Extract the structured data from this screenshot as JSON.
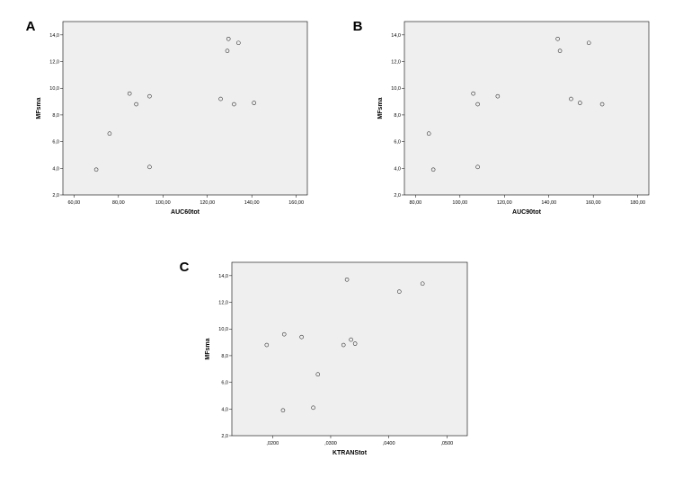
{
  "chart_data": [
    {
      "type": "scatter",
      "panel": "A",
      "xlabel": "AUC60tot",
      "ylabel": "MFsma",
      "xlim": [
        55,
        165
      ],
      "ylim": [
        2,
        15
      ],
      "xticks": [
        "60,00",
        "80,00",
        "100,00",
        "120,00",
        "140,00",
        "160,00"
      ],
      "yticks": [
        "2,0",
        "4,0",
        "6,0",
        "8,0",
        "10,0",
        "12,0",
        "14,0"
      ],
      "grid": false,
      "points": [
        {
          "x": 70,
          "y": 3.9
        },
        {
          "x": 76,
          "y": 6.6
        },
        {
          "x": 85,
          "y": 9.6
        },
        {
          "x": 88,
          "y": 8.8
        },
        {
          "x": 94,
          "y": 9.4
        },
        {
          "x": 94,
          "y": 4.1
        },
        {
          "x": 126,
          "y": 9.2
        },
        {
          "x": 129,
          "y": 12.8
        },
        {
          "x": 129.5,
          "y": 13.7
        },
        {
          "x": 132,
          "y": 8.8
        },
        {
          "x": 134,
          "y": 13.4
        },
        {
          "x": 141,
          "y": 8.9
        }
      ]
    },
    {
      "type": "scatter",
      "panel": "B",
      "xlabel": "AUC90tot",
      "ylabel": "MFsma",
      "xlim": [
        75,
        185
      ],
      "ylim": [
        2,
        15
      ],
      "xticks": [
        "80,00",
        "100,00",
        "120,00",
        "140,00",
        "160,00",
        "180,00"
      ],
      "yticks": [
        "2,0",
        "4,0",
        "6,0",
        "8,0",
        "10,0",
        "12,0",
        "14,0"
      ],
      "grid": false,
      "points": [
        {
          "x": 86,
          "y": 6.6
        },
        {
          "x": 88,
          "y": 3.9
        },
        {
          "x": 106,
          "y": 9.6
        },
        {
          "x": 108,
          "y": 8.8
        },
        {
          "x": 108,
          "y": 4.1
        },
        {
          "x": 117,
          "y": 9.4
        },
        {
          "x": 144,
          "y": 13.7
        },
        {
          "x": 145,
          "y": 12.8
        },
        {
          "x": 150,
          "y": 9.2
        },
        {
          "x": 154,
          "y": 8.9
        },
        {
          "x": 158,
          "y": 13.4
        },
        {
          "x": 164,
          "y": 8.8
        }
      ]
    },
    {
      "type": "scatter",
      "panel": "C",
      "xlabel": "KTRANStot",
      "ylabel": "MFsma",
      "xlim": [
        0.013,
        0.0535
      ],
      "ylim": [
        2,
        15
      ],
      "xticks": [
        ",0200",
        ",0300",
        ",0400",
        ",0500"
      ],
      "xtick_values": [
        0.02,
        0.03,
        0.04,
        0.05
      ],
      "yticks": [
        "2,0",
        "4,0",
        "6,0",
        "8,0",
        "10,0",
        "12,0",
        "14,0"
      ],
      "grid": false,
      "points": [
        {
          "x": 0.019,
          "y": 8.8
        },
        {
          "x": 0.022,
          "y": 9.6
        },
        {
          "x": 0.0218,
          "y": 3.9
        },
        {
          "x": 0.025,
          "y": 9.4
        },
        {
          "x": 0.027,
          "y": 4.1
        },
        {
          "x": 0.0278,
          "y": 6.6
        },
        {
          "x": 0.0322,
          "y": 8.8
        },
        {
          "x": 0.0328,
          "y": 13.7
        },
        {
          "x": 0.0335,
          "y": 9.2
        },
        {
          "x": 0.0342,
          "y": 8.9
        },
        {
          "x": 0.0418,
          "y": 12.8
        },
        {
          "x": 0.0458,
          "y": 13.4
        }
      ]
    }
  ]
}
